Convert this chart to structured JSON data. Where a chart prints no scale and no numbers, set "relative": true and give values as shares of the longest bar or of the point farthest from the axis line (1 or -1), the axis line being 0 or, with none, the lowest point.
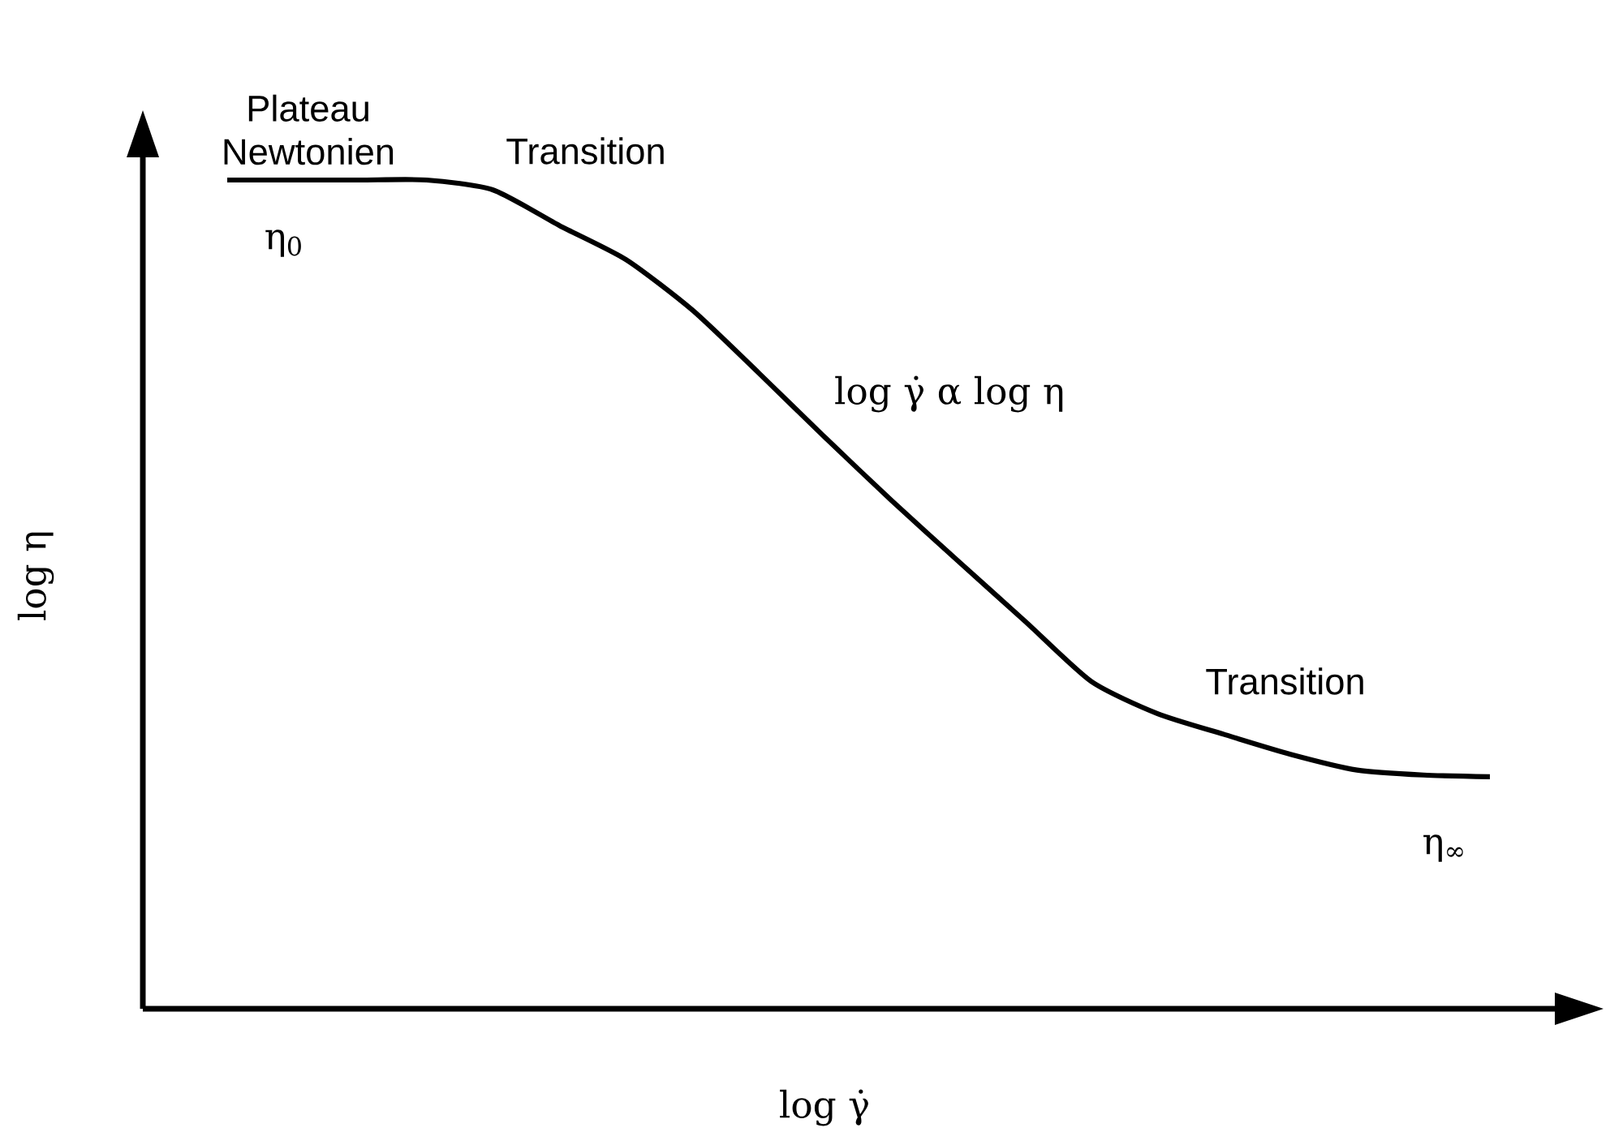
{
  "chart_data": {
    "type": "line",
    "relative": true,
    "xlabel": "log γ̇",
    "ylabel": "log η",
    "categories": [
      null,
      null,
      null,
      null,
      null,
      null,
      null,
      null,
      null,
      null,
      null,
      null,
      null,
      null,
      null,
      null,
      null,
      null,
      null,
      null
    ],
    "color": "#000000",
    "marker": "none",
    "values": [
      1.0,
      1.0,
      1.0,
      1.0,
      0.988,
      0.945,
      0.904,
      0.843,
      0.767,
      0.689,
      0.613,
      0.54,
      0.468,
      0.395,
      0.356,
      0.331,
      0.307,
      0.288,
      0.282,
      0.28
    ],
    "annotations": [
      "Plateau Newtonien",
      "Transition",
      "η$_{0}$",
      "log γ̇ α log η",
      "Transition",
      "η$_{∞}$"
    ]
  }
}
